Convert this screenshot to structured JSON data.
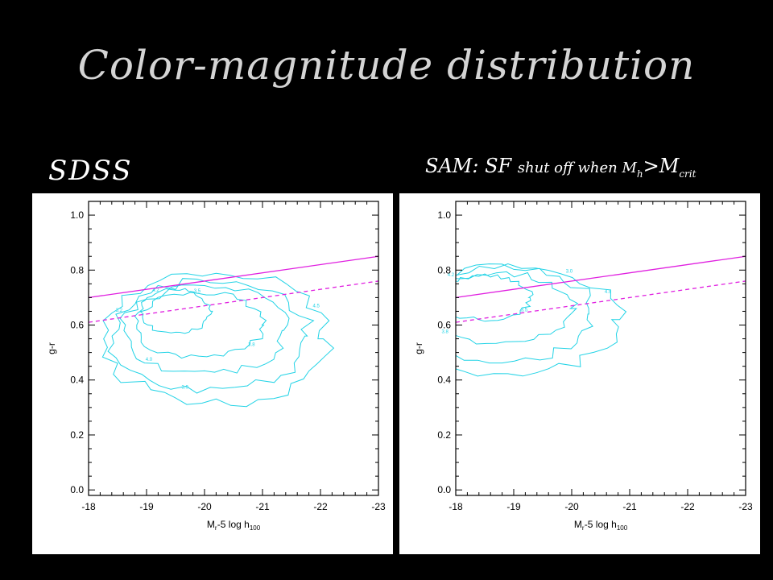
{
  "title": "Color-magnitude distribution",
  "panels": {
    "left": {
      "label": "SDSS"
    },
    "right": {
      "label_main": "SAM: SF ",
      "label_small": "shut off when M",
      "label_sub_h": "h",
      "label_gt": ">M",
      "label_sub_crit": "crit"
    }
  },
  "colors": {
    "background": "#000000",
    "contour": "#22d3e6",
    "fit_line": "#e020e0",
    "title_text": "#d4d4d4"
  },
  "chart_data": [
    {
      "type": "heatmap",
      "name": "SDSS",
      "xlabel": "Mr-5 log h100",
      "ylabel": "g-r",
      "xlim": [
        -18,
        -23
      ],
      "ylim": [
        -0.02,
        1.05
      ],
      "xticks": [
        "-18",
        "-19",
        "-20",
        "-21",
        "-22",
        "-23"
      ],
      "yticks": [
        "0.0",
        "0.2",
        "0.4",
        "0.6",
        "0.8",
        "1.0"
      ],
      "contour_labels": [
        "4.5",
        "4.2",
        "4.0",
        "3.8",
        "3.5",
        "3.2",
        "3.0"
      ],
      "lines": [
        {
          "style": "solid",
          "x": [
            -18,
            -23
          ],
          "y": [
            0.7,
            0.85
          ]
        },
        {
          "style": "dashed",
          "x": [
            -18,
            -23
          ],
          "y": [
            0.61,
            0.76
          ]
        }
      ]
    },
    {
      "type": "heatmap",
      "name": "SAM",
      "xlabel": "Mr-5 log h100",
      "ylabel": "g-r",
      "xlim": [
        -18,
        -23
      ],
      "ylim": [
        -0.02,
        1.05
      ],
      "xticks": [
        "-18",
        "-19",
        "-20",
        "-21",
        "-22",
        "-23"
      ],
      "yticks": [
        "0.0",
        "0.2",
        "0.4",
        "0.6",
        "0.8",
        "1.0"
      ],
      "contour_labels": [
        "4.5",
        "4.2",
        "3.8",
        "3.5",
        "3.0"
      ],
      "lines": [
        {
          "style": "solid",
          "x": [
            -18,
            -23
          ],
          "y": [
            0.7,
            0.85
          ]
        },
        {
          "style": "dashed",
          "x": [
            -18,
            -23
          ],
          "y": [
            0.61,
            0.76
          ]
        }
      ]
    }
  ]
}
